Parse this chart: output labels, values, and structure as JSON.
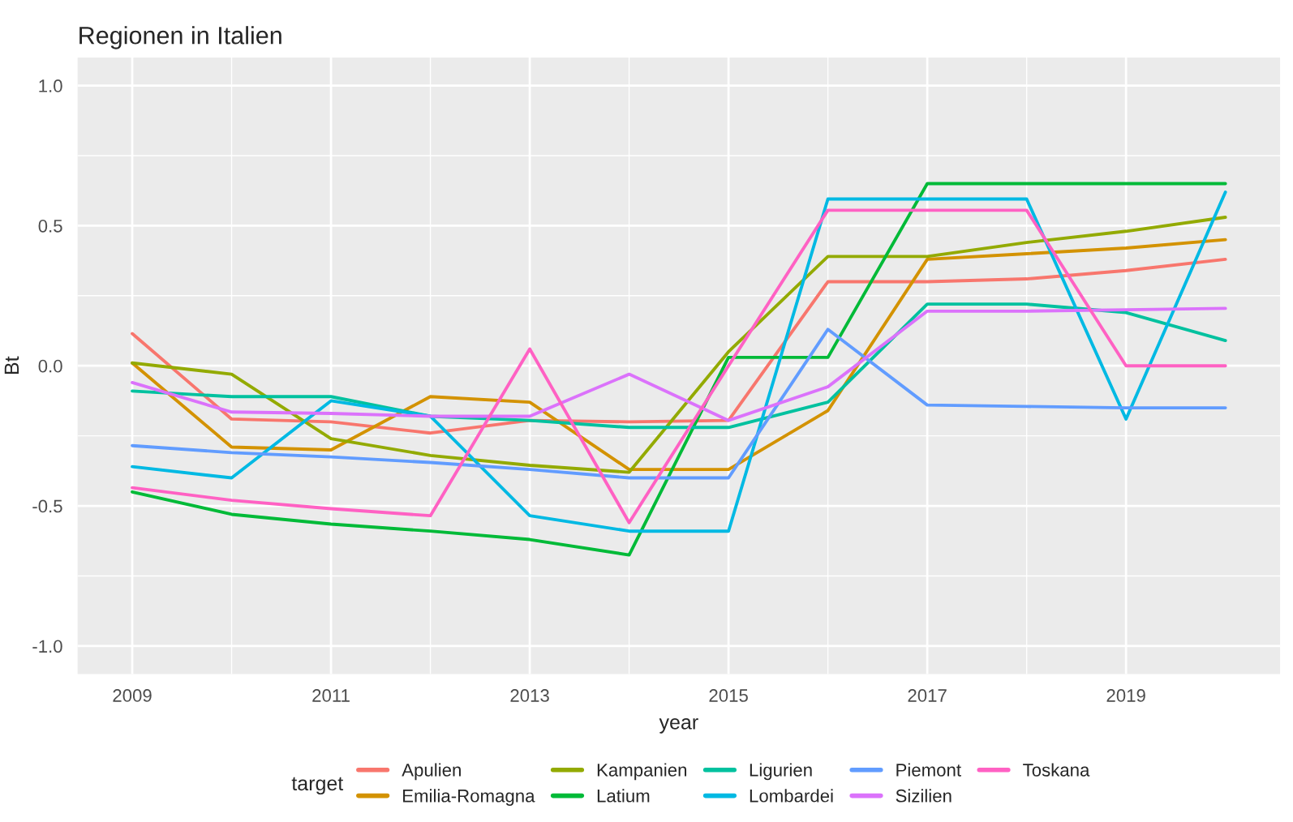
{
  "chart_data": {
    "type": "line",
    "title": "Regionen in Italien",
    "xlabel": "year",
    "ylabel": "Bt",
    "legend_title": "target",
    "legend": "bottom",
    "grid": true,
    "x": [
      2009,
      2010,
      2011,
      2012,
      2013,
      2014,
      2015,
      2016,
      2017,
      2018,
      2019,
      2020
    ],
    "xlim": [
      2008.45,
      2020.55
    ],
    "xticks": [
      2009,
      2011,
      2013,
      2015,
      2017,
      2019
    ],
    "ylim": [
      -1.1,
      1.1
    ],
    "yticks": [
      {
        "value": -1.0,
        "label": "-1.0"
      },
      {
        "value": -0.5,
        "label": "-0.5"
      },
      {
        "value": 0.0,
        "label": "0.0"
      },
      {
        "value": 0.5,
        "label": "0.5"
      },
      {
        "value": 1.0,
        "label": "1.0"
      }
    ],
    "series": [
      {
        "name": "Apulien",
        "color": "#F8766D",
        "values": [
          0.115,
          -0.19,
          -0.2,
          -0.24,
          -0.195,
          -0.2,
          -0.195,
          0.3,
          0.3,
          0.31,
          0.34,
          0.38
        ]
      },
      {
        "name": "Emilia-Romagna",
        "color": "#D39200",
        "values": [
          0.01,
          -0.29,
          -0.3,
          -0.11,
          -0.13,
          -0.37,
          -0.37,
          -0.16,
          0.38,
          0.4,
          0.42,
          0.45
        ]
      },
      {
        "name": "Kampanien",
        "color": "#93AA00",
        "values": [
          0.01,
          -0.03,
          -0.26,
          -0.32,
          -0.355,
          -0.38,
          0.05,
          0.39,
          0.39,
          0.44,
          0.48,
          0.53
        ]
      },
      {
        "name": "Latium",
        "color": "#00BA38",
        "values": [
          -0.45,
          -0.53,
          -0.565,
          -0.59,
          -0.62,
          -0.675,
          0.03,
          0.03,
          0.65,
          0.65,
          0.65,
          0.65
        ]
      },
      {
        "name": "Ligurien",
        "color": "#00C19F",
        "values": [
          -0.09,
          -0.11,
          -0.11,
          -0.18,
          -0.195,
          -0.22,
          -0.22,
          -0.13,
          0.22,
          0.22,
          0.19,
          0.09
        ]
      },
      {
        "name": "Lombardei",
        "color": "#00B9E3",
        "values": [
          -0.36,
          -0.4,
          -0.125,
          -0.18,
          -0.535,
          -0.59,
          -0.59,
          0.595,
          0.595,
          0.595,
          -0.19,
          0.62
        ]
      },
      {
        "name": "Piemont",
        "color": "#619CFF",
        "values": [
          -0.285,
          -0.31,
          -0.325,
          -0.345,
          -0.37,
          -0.4,
          -0.4,
          0.13,
          -0.14,
          -0.145,
          -0.15,
          -0.15
        ]
      },
      {
        "name": "Sizilien",
        "color": "#DB72FB",
        "values": [
          -0.06,
          -0.165,
          -0.17,
          -0.18,
          -0.18,
          -0.03,
          -0.195,
          -0.075,
          0.195,
          0.195,
          0.2,
          0.205
        ]
      },
      {
        "name": "Toskana",
        "color": "#FF61C3",
        "values": [
          -0.435,
          -0.48,
          -0.51,
          -0.535,
          0.06,
          -0.56,
          0.0,
          0.555,
          0.555,
          0.555,
          0.0,
          0.0
        ]
      }
    ]
  }
}
